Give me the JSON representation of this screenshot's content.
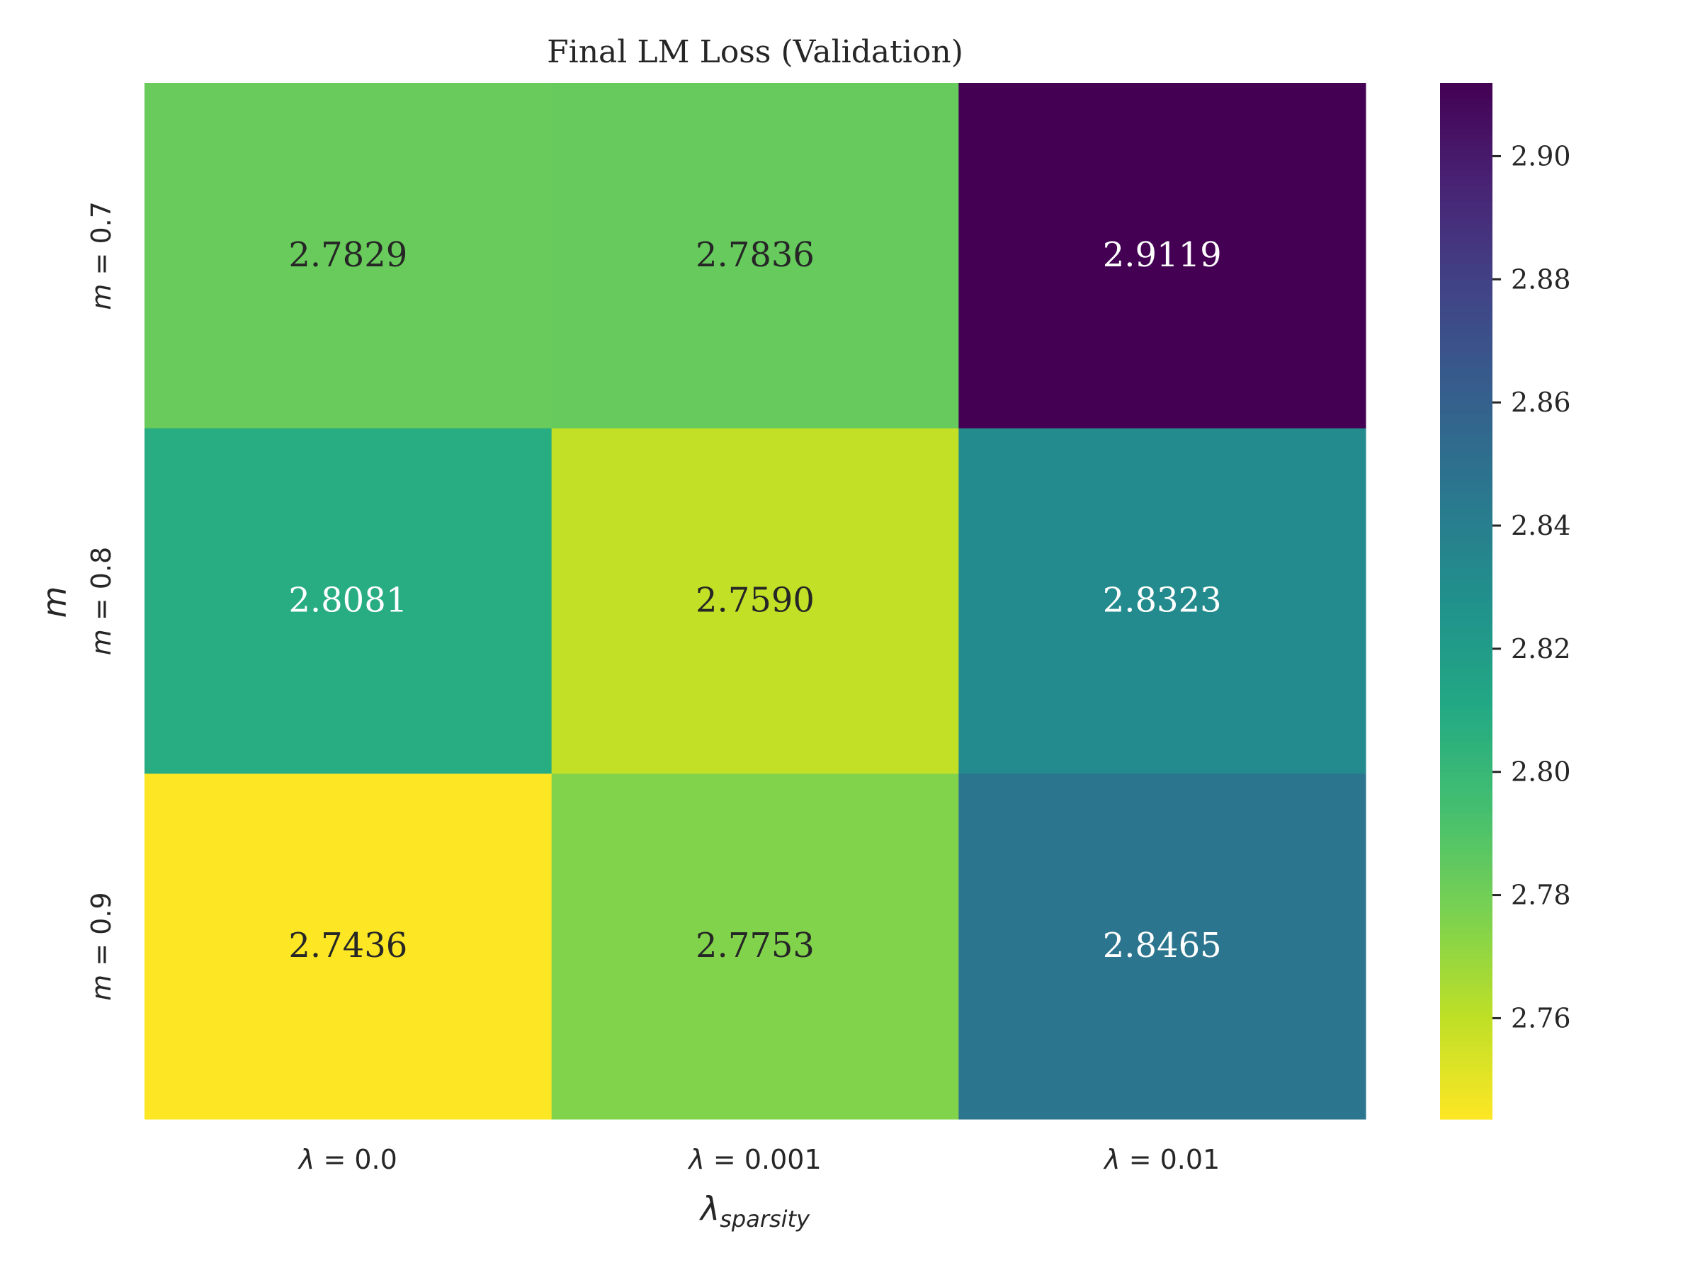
{
  "chart_data": {
    "type": "heatmap",
    "title": "Final LM Loss (Validation)",
    "xlabel": {
      "base": "λ",
      "sub": "sparsity"
    },
    "ylabel": "m",
    "x_categories": [
      {
        "sym": "λ",
        "rest": " = 0.0"
      },
      {
        "sym": "λ",
        "rest": " = 0.001"
      },
      {
        "sym": "λ",
        "rest": " = 0.01"
      }
    ],
    "y_categories": [
      {
        "sym": "m",
        "rest": " = 0.7"
      },
      {
        "sym": "m",
        "rest": " = 0.8"
      },
      {
        "sym": "m",
        "rest": " = 0.9"
      }
    ],
    "values": [
      [
        2.7829,
        2.7836,
        2.9119
      ],
      [
        2.8081,
        2.759,
        2.8323
      ],
      [
        2.7436,
        2.7753,
        2.8465
      ]
    ],
    "value_format_decimals": 4,
    "colormap": "viridis_r",
    "color_range": [
      2.7436,
      2.9119
    ],
    "colorbar_ticks": [
      "2.76",
      "2.78",
      "2.80",
      "2.82",
      "2.84",
      "2.86",
      "2.88",
      "2.90"
    ],
    "grid": false,
    "colorbar_position": "right"
  }
}
